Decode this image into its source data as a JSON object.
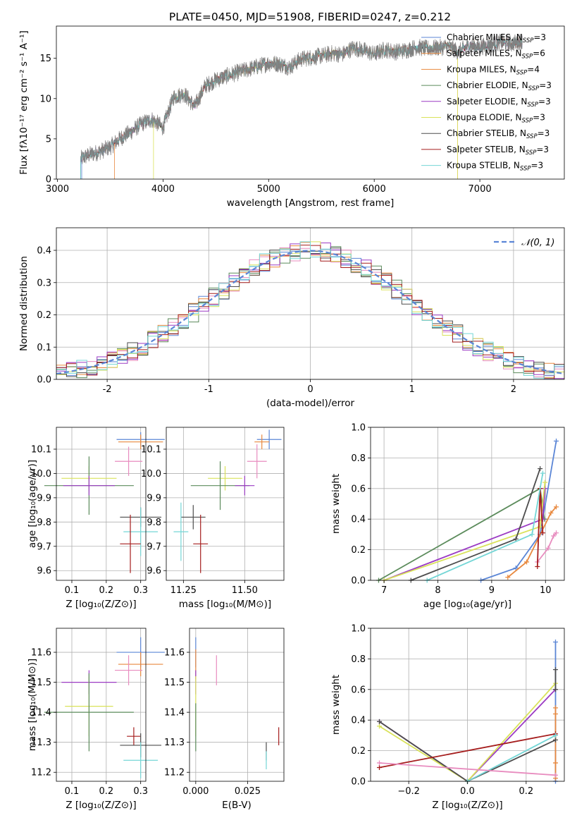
{
  "figure": {
    "title": "PLATE=0450, MJD=51908, FIBERID=0247, z=0.212"
  },
  "series": [
    {
      "key": "chabrier_miles",
      "label": "Chabrier MILES, N",
      "sub": "SSP",
      "suffix": "=3",
      "color": "#5b86d6"
    },
    {
      "key": "salpeter_miles",
      "label": "Salpeter MILES, N",
      "sub": "SSP",
      "suffix": "=6",
      "color": "#e8893f"
    },
    {
      "key": "kroupa_miles",
      "label": "Kroupa MILES, N",
      "sub": "SSP",
      "suffix": "=4",
      "color": "#e8893f"
    },
    {
      "key": "chabrier_elodie",
      "label": "Chabrier ELODIE, N",
      "sub": "SSP",
      "suffix": "=3",
      "color": "#5b8b5b"
    },
    {
      "key": "salpeter_elodie",
      "label": "Salpeter ELODIE, N",
      "sub": "SSP",
      "suffix": "=3",
      "color": "#9b3bc4"
    },
    {
      "key": "kroupa_elodie",
      "label": "Kroupa ELODIE, N",
      "sub": "SSP",
      "suffix": "=3",
      "color": "#d9e25a"
    },
    {
      "key": "chabrier_stelib",
      "label": "Chabrier STELIB, N",
      "sub": "SSP",
      "suffix": "=3",
      "color": "#4d4d4d"
    },
    {
      "key": "salpeter_stelib",
      "label": "Salpeter STELIB, N",
      "sub": "SSP",
      "suffix": "=3",
      "color": "#a51d1d"
    },
    {
      "key": "kroupa_stelib",
      "label": "Kroupa STELIB, N",
      "sub": "SSP",
      "suffix": "=3",
      "color": "#74d6d6"
    }
  ],
  "chart_data": [
    {
      "id": "spectrum",
      "type": "line",
      "xlabel": "wavelength [Angstrom, rest frame]",
      "ylabel": "Flux [fλ10⁻¹⁷ erg cm⁻² s⁻¹ A⁻¹]",
      "xlim": [
        2990,
        7800
      ],
      "ylim": [
        0,
        19
      ],
      "xticks": [
        3000,
        4000,
        5000,
        6000,
        7000
      ],
      "yticks": [
        0,
        5,
        10,
        15
      ],
      "observed": {
        "color": "#808080",
        "x": [
          3220,
          3300,
          3400,
          3500,
          3600,
          3700,
          3800,
          3900,
          4000,
          4100,
          4200,
          4300,
          4400,
          4500,
          4600,
          4700,
          4800,
          4900,
          5000,
          5100,
          5200,
          5300,
          5400,
          5500,
          5600,
          5700,
          5800,
          5900,
          6000,
          6100,
          6200,
          6300,
          6400,
          6500,
          6600,
          6700,
          6800,
          6900,
          7000,
          7100,
          7200,
          7300,
          7400
        ],
        "y": [
          2.5,
          3.0,
          3.4,
          4.0,
          5.1,
          5.9,
          6.9,
          7.4,
          6.4,
          10.2,
          10.6,
          9.0,
          11.6,
          12.3,
          12.8,
          13.2,
          13.6,
          14.0,
          14.4,
          14.3,
          13.9,
          14.9,
          15.1,
          15.3,
          15.6,
          15.5,
          16.3,
          16.0,
          15.5,
          16.1,
          15.8,
          16.0,
          16.4,
          16.2,
          16.3,
          16.5,
          15.8,
          16.6,
          16.4,
          16.7,
          17.0,
          16.8,
          17.2
        ]
      },
      "model_starts": [
        {
          "series": "chabrier_miles",
          "x0": 3230
        },
        {
          "series": "salpeter_miles",
          "x0": 3540
        },
        {
          "series": "kroupa_elodie",
          "x0": 3910
        },
        {
          "series": "chabrier_stelib",
          "x0": 3220
        },
        {
          "series": "kroupa_stelib",
          "x0": 3220
        }
      ],
      "model_ends": [
        {
          "series": "salpeter_miles",
          "x1": 6790
        },
        {
          "series": "kroupa_elodie",
          "x1": 6790
        },
        {
          "series": "salpeter_stelib",
          "x1": 7400
        },
        {
          "series": "kroupa_miles",
          "x1": 7400
        }
      ]
    },
    {
      "id": "residuals",
      "type": "line",
      "xlabel": "(data-model)/error",
      "ylabel": "Normed distribution",
      "xlim": [
        -2.5,
        2.5
      ],
      "ylim": [
        0,
        0.47
      ],
      "xticks": [
        -2,
        -1,
        0,
        1,
        2
      ],
      "yticks": [
        0.0,
        0.1,
        0.2,
        0.3,
        0.4
      ],
      "legend": "𝒩(0, 1)",
      "legend_color": "#5b86d6",
      "bin_edges_start": -2.5,
      "bin_width": 0.1
    },
    {
      "id": "age_vs_Z",
      "type": "scatter",
      "xlabel": "Z [log₁₀(Z/Z⊙)]",
      "ylabel": "age  [log₁₀(age/yr)]",
      "xlim": [
        0.055,
        0.315
      ],
      "ylim": [
        9.56,
        10.19
      ],
      "xticks": [
        0.1,
        0.2,
        0.3
      ],
      "xticklabels": [
        "0.1",
        "0.2",
        "0.3"
      ],
      "yticks": [
        9.6,
        9.7,
        9.8,
        9.9,
        10.0,
        10.1
      ],
      "points": [
        {
          "series": "chabrier_miles",
          "x": 0.3,
          "y": 10.14,
          "xerr": 0.07,
          "yerr": 0.03
        },
        {
          "series": "salpeter_miles",
          "x": 0.3,
          "y": 10.13,
          "xerr": 0.065,
          "yerr": 0.03
        },
        {
          "series": "kroupa_miles",
          "x": 0.265,
          "y": 10.05,
          "xerr": 0.04,
          "yerr": 0.06
        },
        {
          "series": "kroupa_elodie",
          "x": 0.15,
          "y": 9.98,
          "xerr": 0.08,
          "yerr": 0.05
        },
        {
          "series": "chabrier_elodie",
          "x": 0.15,
          "y": 9.95,
          "xerr": 0.13,
          "yerr": 0.12
        },
        {
          "series": "salpeter_elodie",
          "x": 0.15,
          "y": 9.95,
          "xerr": 0.075,
          "yerr": 0.04
        },
        {
          "series": "chabrier_stelib",
          "x": 0.3,
          "y": 9.82,
          "xerr": 0.06,
          "yerr": 0.04
        },
        {
          "series": "kroupa_stelib",
          "x": 0.3,
          "y": 9.76,
          "xerr": 0.05,
          "yerr": 0.1
        },
        {
          "series": "salpeter_stelib",
          "x": 0.27,
          "y": 9.71,
          "xerr": 0.03,
          "yerr": 0.12
        }
      ]
    },
    {
      "id": "age_vs_mass",
      "type": "scatter",
      "xlabel": "mass [log₁₀(M/M⊙)]",
      "ylabel": "",
      "xlim": [
        11.18,
        11.66
      ],
      "ylim": [
        9.56,
        10.19
      ],
      "xticks": [
        11.25,
        11.5
      ],
      "xticklabels": [
        "11.25",
        "11.50"
      ],
      "yticks": [
        9.6,
        9.7,
        9.8,
        9.9,
        10.0,
        10.1
      ],
      "points": [
        {
          "series": "chabrier_miles",
          "x": 11.6,
          "y": 10.14,
          "xerr": 0.05,
          "yerr": 0.04
        },
        {
          "series": "salpeter_miles",
          "x": 11.57,
          "y": 10.13,
          "xerr": 0.03,
          "yerr": 0.03
        },
        {
          "series": "kroupa_miles",
          "x": 11.55,
          "y": 10.05,
          "xerr": 0.04,
          "yerr": 0.07
        },
        {
          "series": "kroupa_elodie",
          "x": 11.42,
          "y": 9.98,
          "xerr": 0.07,
          "yerr": 0.05
        },
        {
          "series": "chabrier_elodie",
          "x": 11.4,
          "y": 9.95,
          "xerr": 0.12,
          "yerr": 0.1
        },
        {
          "series": "salpeter_elodie",
          "x": 11.5,
          "y": 9.95,
          "xerr": 0.04,
          "yerr": 0.04
        },
        {
          "series": "chabrier_stelib",
          "x": 11.29,
          "y": 9.82,
          "xerr": 0.05,
          "yerr": 0.05
        },
        {
          "series": "kroupa_stelib",
          "x": 11.24,
          "y": 9.76,
          "xerr": 0.03,
          "yerr": 0.12
        },
        {
          "series": "salpeter_stelib",
          "x": 11.32,
          "y": 9.71,
          "xerr": 0.03,
          "yerr": 0.12
        }
      ]
    },
    {
      "id": "weight_vs_age",
      "type": "line",
      "xlabel": "age  [log₁₀(age/yr)]",
      "ylabel": "mass weight",
      "xlim": [
        6.75,
        10.35
      ],
      "ylim": [
        0,
        1
      ],
      "xticks": [
        7,
        8,
        9,
        10
      ],
      "yticks": [
        0.0,
        0.2,
        0.4,
        0.6,
        0.8,
        1.0
      ],
      "lines": [
        {
          "series": "chabrier_miles",
          "x": [
            8.8,
            9.45,
            9.9,
            10.2
          ],
          "y": [
            0.0,
            0.08,
            0.3,
            0.91
          ]
        },
        {
          "series": "salpeter_miles",
          "x": [
            9.3,
            9.65,
            10.1,
            10.2
          ],
          "y": [
            0.02,
            0.12,
            0.44,
            0.48
          ]
        },
        {
          "series": "kroupa_miles",
          "x": [
            9.85,
            10.05,
            10.15,
            10.2
          ],
          "y": [
            0.12,
            0.21,
            0.29,
            0.31
          ]
        },
        {
          "series": "chabrier_elodie",
          "x": [
            6.9,
            9.9,
            9.98
          ],
          "y": [
            0.0,
            0.6,
            0.4
          ]
        },
        {
          "series": "salpeter_elodie",
          "x": [
            7.0,
            9.95,
            9.99
          ],
          "y": [
            0.0,
            0.4,
            0.6
          ]
        },
        {
          "series": "kroupa_elodie",
          "x": [
            7.0,
            9.9,
            9.99
          ],
          "y": [
            0.0,
            0.35,
            0.64
          ]
        },
        {
          "series": "chabrier_stelib",
          "x": [
            7.5,
            9.45,
            9.9
          ],
          "y": [
            0.0,
            0.27,
            0.73
          ]
        },
        {
          "series": "salpeter_stelib",
          "x": [
            9.85,
            9.9,
            9.95
          ],
          "y": [
            0.09,
            0.6,
            0.31
          ]
        },
        {
          "series": "kroupa_stelib",
          "x": [
            7.8,
            9.75,
            9.95
          ],
          "y": [
            0.0,
            0.3,
            0.7
          ]
        }
      ]
    },
    {
      "id": "mass_vs_Z",
      "type": "scatter",
      "xlabel": "Z [log₁₀(Z/Z⊙)]",
      "ylabel": "mass [log₁₀(M/M⊙)]",
      "xlim": [
        0.055,
        0.315
      ],
      "ylim": [
        11.17,
        11.68
      ],
      "xticks": [
        0.1,
        0.2,
        0.3
      ],
      "xticklabels": [
        "0.1",
        "0.2",
        "0.3"
      ],
      "yticks": [
        11.2,
        11.3,
        11.4,
        11.5,
        11.6
      ],
      "points": [
        {
          "series": "chabrier_miles",
          "x": 0.3,
          "y": 11.6,
          "xerr": 0.07,
          "yerr": 0.05
        },
        {
          "series": "salpeter_miles",
          "x": 0.3,
          "y": 11.56,
          "xerr": 0.065,
          "yerr": 0.04
        },
        {
          "series": "kroupa_miles",
          "x": 0.265,
          "y": 11.54,
          "xerr": 0.04,
          "yerr": 0.05
        },
        {
          "series": "salpeter_elodie",
          "x": 0.15,
          "y": 11.5,
          "xerr": 0.08,
          "yerr": 0.04
        },
        {
          "series": "kroupa_elodie",
          "x": 0.15,
          "y": 11.42,
          "xerr": 0.07,
          "yerr": 0.1
        },
        {
          "series": "chabrier_elodie",
          "x": 0.15,
          "y": 11.4,
          "xerr": 0.13,
          "yerr": 0.13
        },
        {
          "series": "salpeter_stelib",
          "x": 0.28,
          "y": 11.32,
          "xerr": 0.02,
          "yerr": 0.03
        },
        {
          "series": "chabrier_stelib",
          "x": 0.3,
          "y": 11.29,
          "xerr": 0.06,
          "yerr": 0.04
        },
        {
          "series": "kroupa_stelib",
          "x": 0.3,
          "y": 11.24,
          "xerr": 0.05,
          "yerr": 0.06
        }
      ]
    },
    {
      "id": "mass_vs_ebv",
      "type": "scatter",
      "xlabel": "E(B-V)",
      "ylabel": "",
      "xlim": [
        -0.003,
        0.0425
      ],
      "ylim": [
        11.17,
        11.68
      ],
      "xticks": [
        0.0,
        0.025
      ],
      "xticklabels": [
        "0.000",
        "0.025"
      ],
      "yticks": [
        11.2,
        11.3,
        11.4,
        11.5,
        11.6
      ],
      "points": [
        {
          "series": "chabrier_miles",
          "x": 0.0,
          "y": 11.6,
          "xerr": 0,
          "yerr": 0.05
        },
        {
          "series": "salpeter_miles",
          "x": 0.0,
          "y": 11.56,
          "xerr": 0,
          "yerr": 0.05
        },
        {
          "series": "kroupa_miles",
          "x": 0.01,
          "y": 11.54,
          "xerr": 0,
          "yerr": 0.05
        },
        {
          "series": "salpeter_elodie",
          "x": 0.0,
          "y": 11.5,
          "xerr": 0,
          "yerr": 0.04
        },
        {
          "series": "kroupa_elodie",
          "x": 0.0,
          "y": 11.42,
          "xerr": 0,
          "yerr": 0.1
        },
        {
          "series": "chabrier_elodie",
          "x": 0.0,
          "y": 11.35,
          "xerr": 0,
          "yerr": 0.08
        },
        {
          "series": "salpeter_stelib",
          "x": 0.04,
          "y": 11.32,
          "xerr": 0,
          "yerr": 0.03
        },
        {
          "series": "chabrier_stelib",
          "x": 0.034,
          "y": 11.27,
          "xerr": 0,
          "yerr": 0.03
        },
        {
          "series": "kroupa_stelib",
          "x": 0.034,
          "y": 11.24,
          "xerr": 0,
          "yerr": 0.03
        }
      ]
    },
    {
      "id": "weight_vs_Z",
      "type": "line",
      "xlabel": "Z [log₁₀(Z/Z⊙)]",
      "ylabel": "mass weight",
      "xlim": [
        -0.33,
        0.33
      ],
      "ylim": [
        0,
        1
      ],
      "xticks": [
        -0.2,
        0.0,
        0.2
      ],
      "xticklabels": [
        "−0.2",
        "0.0",
        "0.2"
      ],
      "yticks": [
        0.0,
        0.2,
        0.4,
        0.6,
        0.8,
        1.0
      ],
      "lines": [
        {
          "series": "chabrier_miles",
          "x": [
            0.3,
            0.3,
            0.3
          ],
          "y": [
            0.91,
            0.3,
            0.0
          ]
        },
        {
          "series": "salpeter_miles",
          "x": [
            0.3,
            0.3,
            0.3,
            0.3
          ],
          "y": [
            0.48,
            0.44,
            0.12,
            0.02
          ]
        },
        {
          "series": "salpeter_elodie",
          "x": [
            -0.3,
            0.0,
            0.3
          ],
          "y": [
            0.39,
            0.0,
            0.6
          ]
        },
        {
          "series": "kroupa_elodie",
          "x": [
            -0.3,
            0.0,
            0.3
          ],
          "y": [
            0.36,
            0.0,
            0.64
          ]
        },
        {
          "series": "chabrier_stelib",
          "x": [
            -0.3,
            0.0,
            0.3
          ],
          "y": [
            0.39,
            0.0,
            0.27
          ]
        },
        {
          "series": "salpeter_stelib",
          "x": [
            -0.3,
            0.3
          ],
          "y": [
            0.09,
            0.31
          ]
        },
        {
          "series": "kroupa_stelib",
          "x": [
            0.0,
            0.3
          ],
          "y": [
            0.0,
            0.3
          ]
        },
        {
          "series": "kroupa_miles",
          "x": [
            -0.3,
            0.3
          ],
          "y": [
            0.12,
            0.04
          ]
        },
        {
          "series": "chabrier_stelib_b",
          "x": [
            0.3,
            0.3
          ],
          "y": [
            0.73,
            0.6
          ]
        }
      ]
    }
  ]
}
